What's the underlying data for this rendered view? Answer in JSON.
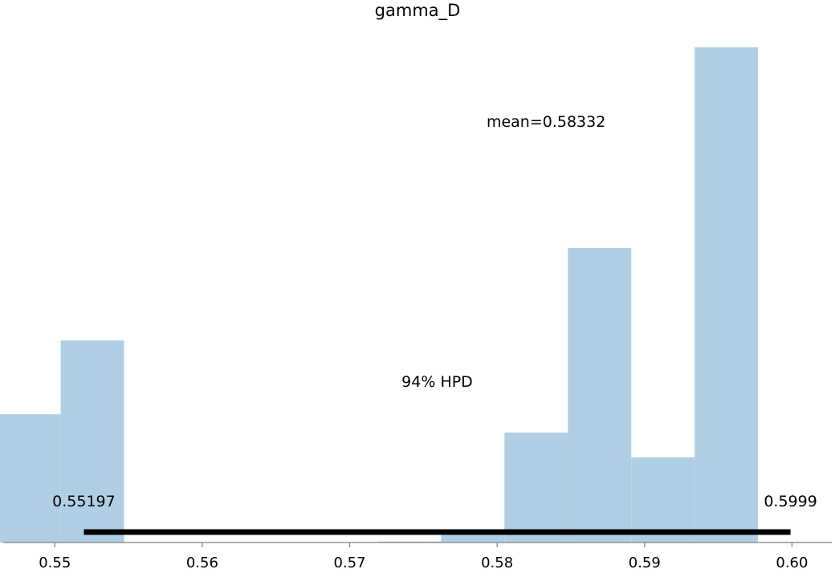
{
  "chart_data": {
    "type": "bar",
    "title": "gamma_D",
    "xlabel": "",
    "ylabel": "",
    "xlim": [
      0.5465,
      0.6027
    ],
    "ylim": [
      0,
      1
    ],
    "grid": false,
    "y_axis_visible": false,
    "bar_color": "#b0cfe4",
    "bins": [
      {
        "x0": 0.5461,
        "x1": 0.5504,
        "value": 0.259
      },
      {
        "x0": 0.5504,
        "x1": 0.5547,
        "value": 0.408
      },
      {
        "x0": 0.5719,
        "x1": 0.5762,
        "value": 0.002
      },
      {
        "x0": 0.5762,
        "x1": 0.5805,
        "value": 0.022
      },
      {
        "x0": 0.5805,
        "x1": 0.5848,
        "value": 0.222
      },
      {
        "x0": 0.5848,
        "x1": 0.5891,
        "value": 0.595
      },
      {
        "x0": 0.5891,
        "x1": 0.5934,
        "value": 0.172
      },
      {
        "x0": 0.5934,
        "x1": 0.5977,
        "value": 1.0
      }
    ],
    "xticks": [
      {
        "value": 0.55,
        "label": "0.55"
      },
      {
        "value": 0.56,
        "label": "0.56"
      },
      {
        "value": 0.57,
        "label": "0.57"
      },
      {
        "value": 0.58,
        "label": "0.58"
      },
      {
        "value": 0.59,
        "label": "0.59"
      },
      {
        "value": 0.6,
        "label": "0.60"
      }
    ],
    "mean": {
      "value": 0.58332,
      "label": "mean=0.58332"
    },
    "hpd": {
      "label": "94% HPD",
      "low": 0.55197,
      "high": 0.5999,
      "low_label": "0.55197",
      "high_label": "0.5999"
    }
  }
}
